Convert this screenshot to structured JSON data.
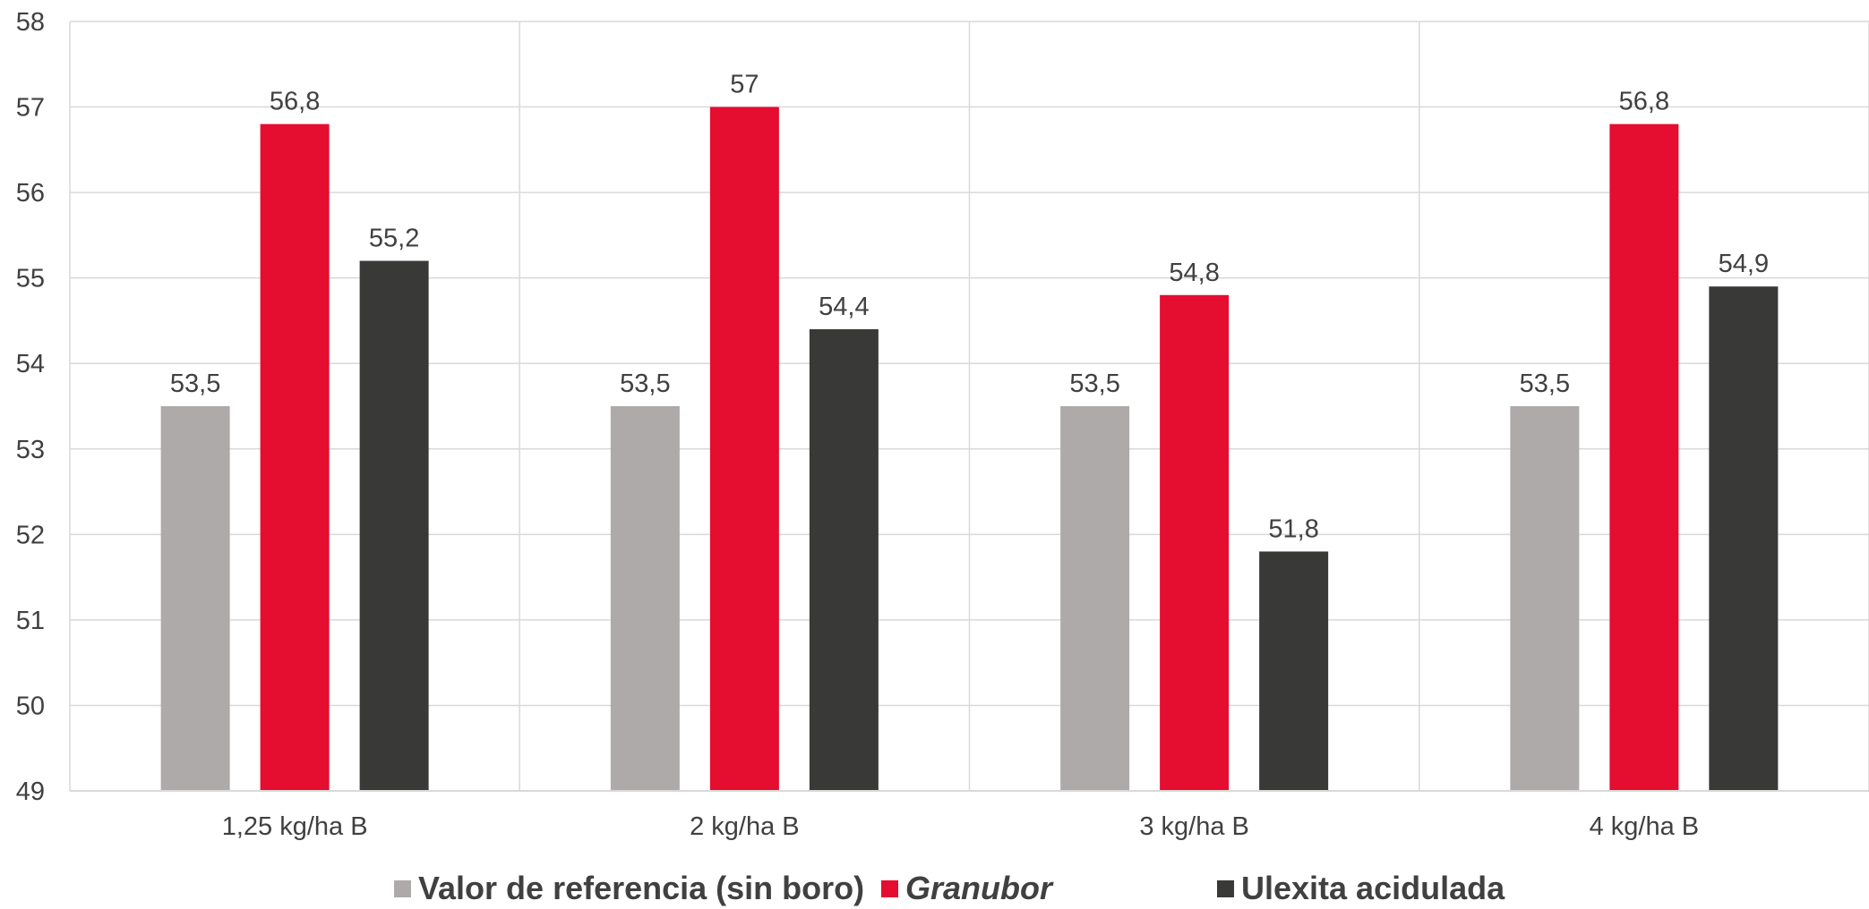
{
  "chart_data": {
    "type": "bar",
    "categories": [
      "1,25 kg/ha B",
      "2 kg/ha B",
      "3 kg/ha B",
      "4 kg/ha B"
    ],
    "series": [
      {
        "name": "Valor de referencia (sin boro)",
        "color": "#aeaaaa",
        "values": [
          53.5,
          53.5,
          53.5,
          53.5
        ],
        "labels": [
          "53,5",
          "53,5",
          "53,5",
          "53,5"
        ]
      },
      {
        "name": "Granubor",
        "color": "#e50d30",
        "values": [
          56.8,
          57,
          54.8,
          56.8
        ],
        "labels": [
          "56,8",
          "57",
          "54,8",
          "56,8"
        ]
      },
      {
        "name": "Ulexita acidulada",
        "color": "#393938",
        "values": [
          55.2,
          54.4,
          51.8,
          54.9
        ],
        "labels": [
          "55,2",
          "54,4",
          "51,8",
          "54,9"
        ]
      }
    ],
    "ylim": [
      49,
      58
    ],
    "yticks": [
      49,
      50,
      51,
      52,
      53,
      54,
      55,
      56,
      57,
      58
    ],
    "grid": true,
    "legend": "bottom",
    "data_labels": true
  },
  "legend": {
    "items": [
      {
        "label": "Valor de referencia (sin boro)",
        "color": "#aeaaaa"
      },
      {
        "label": "Granubor",
        "color": "#e50d30"
      },
      {
        "label": "Ulexita acidulada",
        "color": "#393938"
      }
    ]
  }
}
